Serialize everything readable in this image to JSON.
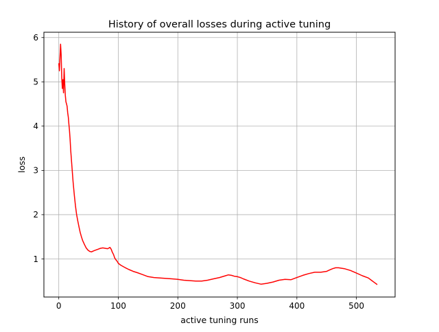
{
  "chart_data": {
    "type": "line",
    "title": "History of overall losses during active tuning",
    "xlabel": "active tuning runs",
    "ylabel": "loss",
    "xlim": [
      -25,
      565
    ],
    "ylim": [
      0.14,
      6.12
    ],
    "xticks": [
      0,
      100,
      200,
      300,
      400,
      500
    ],
    "yticks": [
      1,
      2,
      3,
      4,
      5,
      6
    ],
    "grid": true,
    "colors": {
      "line": "#ff0000",
      "grid": "#b0b0b0"
    },
    "series": [
      {
        "color": "#ff0000",
        "x": [
          0,
          1,
          2,
          3,
          4,
          5,
          6,
          7,
          8,
          9,
          10,
          11,
          12,
          13,
          14,
          15,
          16,
          17,
          18,
          19,
          20,
          22,
          24,
          26,
          28,
          30,
          32,
          34,
          36,
          38,
          40,
          43,
          46,
          49,
          52,
          55,
          58,
          62,
          66,
          70,
          74,
          78,
          82,
          86,
          88,
          90,
          92,
          94,
          96,
          98,
          100,
          104,
          108,
          112,
          118,
          125,
          132,
          140,
          150,
          160,
          170,
          180,
          190,
          200,
          210,
          220,
          230,
          240,
          250,
          260,
          270,
          280,
          285,
          290,
          295,
          300,
          305,
          310,
          320,
          330,
          340,
          350,
          360,
          370,
          380,
          390,
          400,
          410,
          420,
          430,
          440,
          450,
          455,
          460,
          465,
          470,
          480,
          490,
          500,
          510,
          520,
          525,
          530,
          535
        ],
        "y": [
          5.42,
          5.25,
          5.55,
          5.85,
          5.6,
          5.1,
          4.85,
          5.05,
          4.75,
          5.3,
          4.95,
          4.7,
          4.55,
          4.5,
          4.45,
          4.3,
          4.2,
          4.05,
          3.9,
          3.7,
          3.45,
          3.1,
          2.75,
          2.45,
          2.2,
          2.0,
          1.85,
          1.72,
          1.6,
          1.5,
          1.42,
          1.33,
          1.25,
          1.2,
          1.17,
          1.16,
          1.18,
          1.2,
          1.22,
          1.24,
          1.25,
          1.24,
          1.23,
          1.26,
          1.22,
          1.15,
          1.1,
          1.02,
          0.98,
          0.95,
          0.9,
          0.86,
          0.83,
          0.8,
          0.76,
          0.72,
          0.69,
          0.65,
          0.6,
          0.58,
          0.57,
          0.56,
          0.55,
          0.54,
          0.52,
          0.51,
          0.5,
          0.5,
          0.52,
          0.55,
          0.58,
          0.62,
          0.64,
          0.63,
          0.61,
          0.6,
          0.58,
          0.55,
          0.5,
          0.46,
          0.43,
          0.45,
          0.48,
          0.52,
          0.54,
          0.53,
          0.58,
          0.63,
          0.67,
          0.7,
          0.7,
          0.72,
          0.75,
          0.78,
          0.8,
          0.8,
          0.78,
          0.74,
          0.68,
          0.62,
          0.57,
          0.52,
          0.47,
          0.42
        ]
      }
    ]
  }
}
